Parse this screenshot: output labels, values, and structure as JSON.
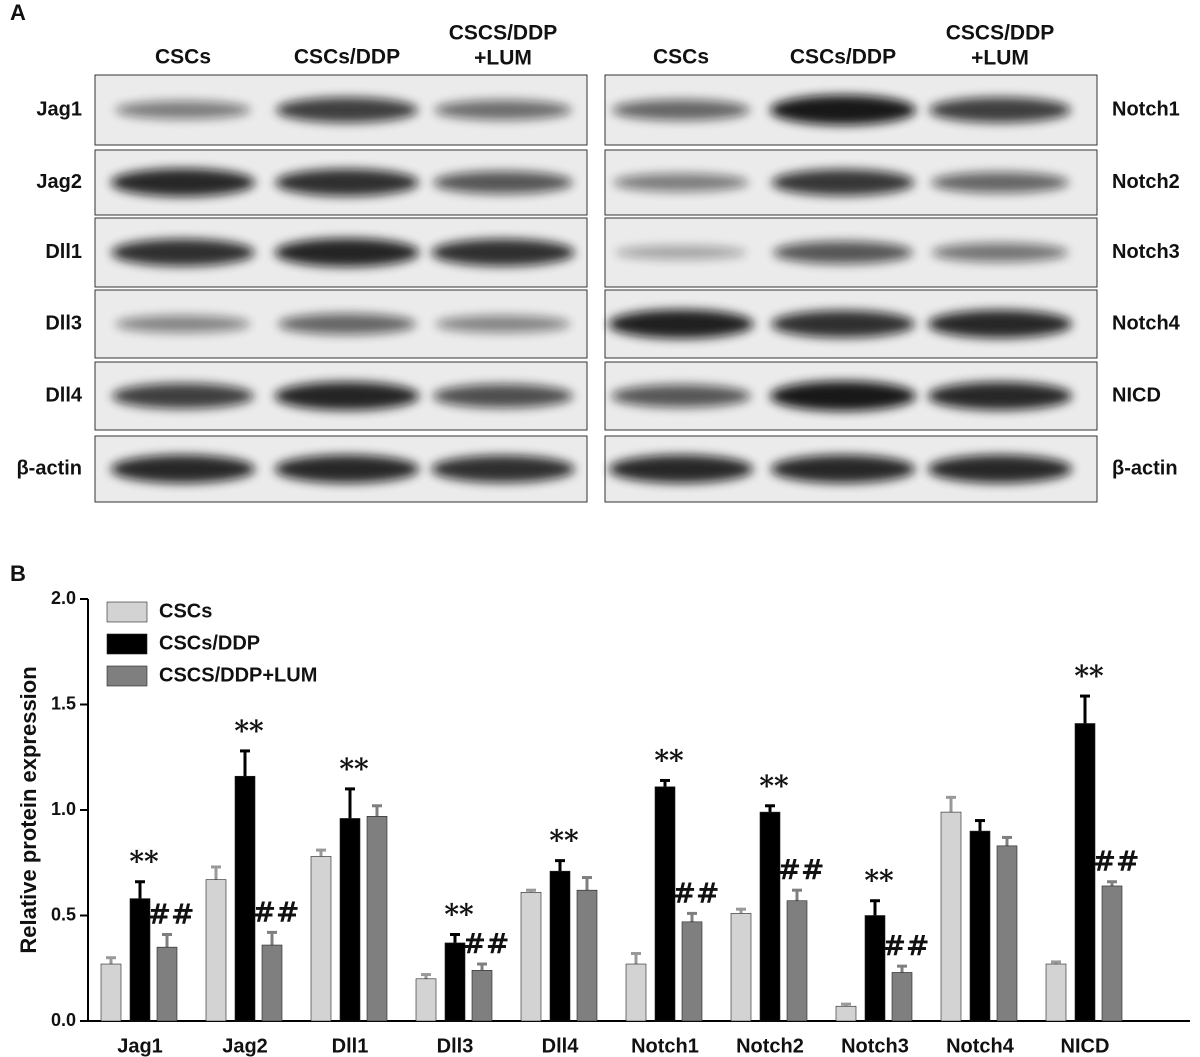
{
  "panel_a": {
    "label": "A",
    "left": {
      "columns": [
        [
          "CSCs"
        ],
        [
          "CSCs/DDP"
        ],
        [
          "CSCS/DDP",
          "+LUM"
        ]
      ],
      "rows": [
        "Jag1",
        "Jag2",
        "Dll1",
        "Dll3",
        "Dll4",
        "β-actin"
      ]
    },
    "right": {
      "columns": [
        [
          "CSCs"
        ],
        [
          "CSCs/DDP"
        ],
        [
          "CSCS/DDP",
          "+LUM"
        ]
      ],
      "rows": [
        "Notch1",
        "Notch2",
        "Notch3",
        "Notch4",
        "NICD",
        "β-actin"
      ]
    }
  },
  "chart_data": {
    "type": "bar",
    "panel_label": "B",
    "y_label": "Relative protein expression",
    "categories": [
      "Jag1",
      "Jag2",
      "Dll1",
      "Dll3",
      "Dll4",
      "Notch1",
      "Notch2",
      "Notch3",
      "Notch4",
      "NICD"
    ],
    "series": [
      {
        "name": "CSCs",
        "color": "#d3d3d3",
        "values": [
          0.27,
          0.67,
          0.78,
          0.2,
          0.61,
          0.27,
          0.51,
          0.07,
          0.99,
          0.27
        ],
        "errors": [
          0.03,
          0.06,
          0.03,
          0.02,
          0.01,
          0.05,
          0.02,
          0.01,
          0.07,
          0.01
        ],
        "annotations": [
          null,
          null,
          null,
          null,
          null,
          null,
          null,
          null,
          null,
          null
        ]
      },
      {
        "name": "CSCs/DDP",
        "color": "#000000",
        "values": [
          0.58,
          1.16,
          0.96,
          0.37,
          0.71,
          1.11,
          0.99,
          0.5,
          0.9,
          1.41
        ],
        "errors": [
          0.08,
          0.12,
          0.14,
          0.04,
          0.05,
          0.03,
          0.03,
          0.07,
          0.05,
          0.13
        ],
        "annotations": [
          "**",
          "**",
          "**",
          "**",
          "**",
          "**",
          "**",
          "**",
          null,
          "**"
        ]
      },
      {
        "name": "CSCS/DDP+LUM",
        "color": "#7f7f7f",
        "values": [
          0.35,
          0.36,
          0.97,
          0.24,
          0.62,
          0.47,
          0.57,
          0.23,
          0.83,
          0.64
        ],
        "errors": [
          0.06,
          0.06,
          0.05,
          0.03,
          0.06,
          0.04,
          0.05,
          0.03,
          0.04,
          0.02
        ],
        "annotations": [
          "##",
          "##",
          null,
          "##",
          null,
          "##",
          "##",
          "##",
          null,
          "##"
        ]
      }
    ],
    "ylim": [
      0,
      2
    ],
    "yticks": [
      {
        "value": 0,
        "label": "0.0"
      },
      0.5,
      {
        "value": 1,
        "label": "1.0"
      },
      1.5,
      {
        "value": 2,
        "label": "2.0"
      }
    ],
    "legend": "top-left"
  }
}
